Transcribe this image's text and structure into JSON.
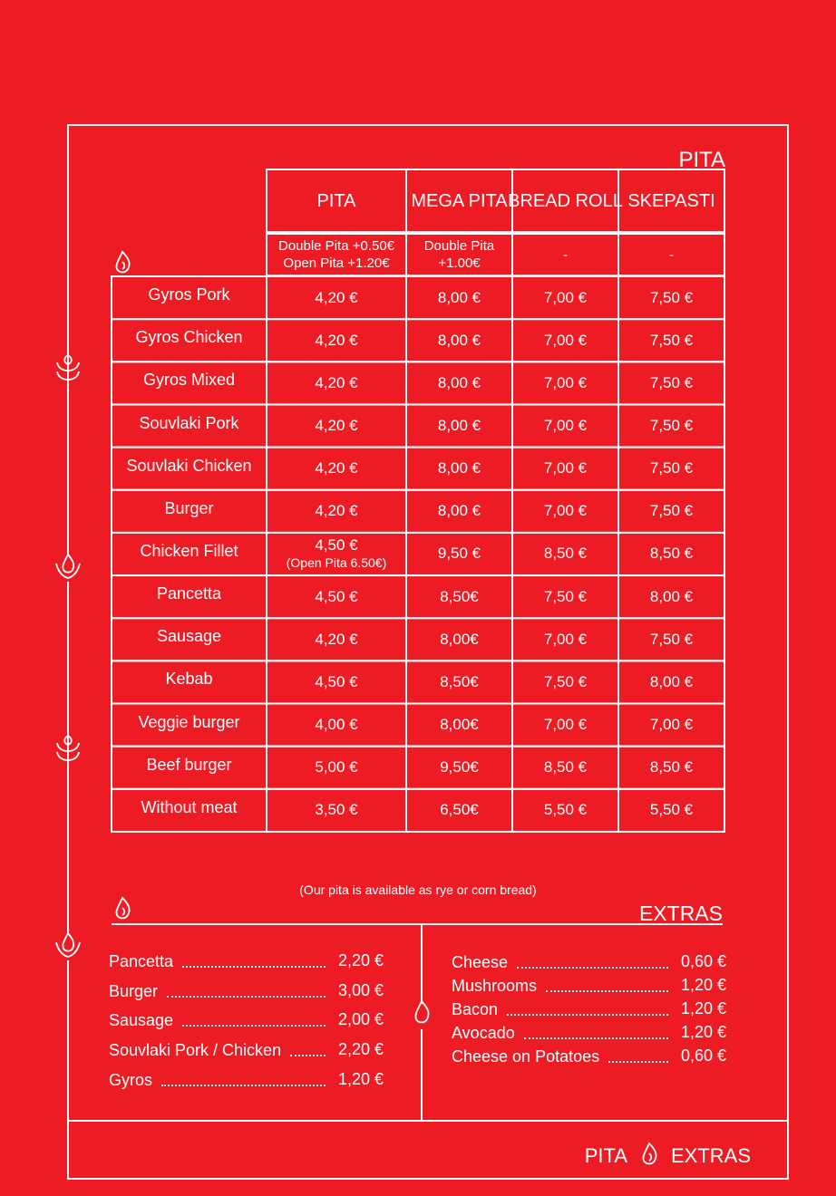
{
  "section_title": "PITA",
  "columns": [
    "PITA",
    "MEGA PITA",
    "BREAD ROLL",
    "SKEPASTI"
  ],
  "notes": [
    [
      "Double Pita +0.50€",
      "Open Pita +1.20€"
    ],
    [
      "Double Pita",
      "+1.00€"
    ],
    [
      "-"
    ],
    [
      "-"
    ]
  ],
  "rows": [
    {
      "name": "Gyros Pork",
      "prices": [
        "4,20 €",
        "8,00 €",
        "7,00 €",
        "7,50 €"
      ]
    },
    {
      "name": "Gyros Chicken",
      "prices": [
        "4,20 €",
        "8,00 €",
        "7,00 €",
        "7,50 €"
      ]
    },
    {
      "name": "Gyros Mixed",
      "prices": [
        "4,20 €",
        "8,00 €",
        "7,00 €",
        "7,50 €"
      ]
    },
    {
      "name": "Souvlaki Pork",
      "prices": [
        "4,20 €",
        "8,00 €",
        "7,00 €",
        "7,50 €"
      ]
    },
    {
      "name": "Souvlaki Chicken",
      "prices": [
        "4,20 €",
        "8,00 €",
        "7,00 €",
        "7,50 €"
      ]
    },
    {
      "name": "Burger",
      "prices": [
        "4,20 €",
        "8,00 €",
        "7,00 €",
        "7,50 €"
      ]
    },
    {
      "name": "Chicken Fillet",
      "prices": [
        "4,50 €",
        "9,50 €",
        "8,50 €",
        "8,50 €"
      ],
      "extra": "(Open Pita 6.50€)"
    },
    {
      "name": "Pancetta",
      "prices": [
        "4,50 €",
        "8,50€",
        "7,50 €",
        "8,00 €"
      ]
    },
    {
      "name": "Sausage",
      "prices": [
        "4,20 €",
        "8,00€",
        "7,00 €",
        "7,50 €"
      ]
    },
    {
      "name": "Kebab",
      "prices": [
        "4,50 €",
        "8,50€",
        "7,50 €",
        "8,00 €"
      ]
    },
    {
      "name": "Veggie burger",
      "prices": [
        "4,00 €",
        "8,00€",
        "7,00 €",
        "7,00 €"
      ]
    },
    {
      "name": "Beef burger",
      "prices": [
        "5,00 €",
        "9,50€",
        "8,50 €",
        "8,50 €"
      ]
    },
    {
      "name": "Without meat",
      "prices": [
        "3,50 €",
        "6,50€",
        "5,50 €",
        "5,50 €"
      ]
    }
  ],
  "footnote": "(Our pita is available as rye or corn bread)",
  "extras_title": "EXTRAS",
  "extras_left": [
    {
      "name": "Pancetta",
      "price": "2,20 €"
    },
    {
      "name": "Burger",
      "price": "3,00 €"
    },
    {
      "name": "Sausage",
      "price": "2,00 €"
    },
    {
      "name": "Souvlaki Pork / Chicken",
      "price": "2,20 €"
    },
    {
      "name": "Gyros",
      "price": "1,20 €"
    }
  ],
  "extras_right": [
    {
      "name": "Cheese",
      "price": "0,60 €"
    },
    {
      "name": "Mushrooms",
      "price": "1,20 €"
    },
    {
      "name": "Bacon",
      "price": "1,20 €"
    },
    {
      "name": "Avocado",
      "price": "1,20 €"
    },
    {
      "name": "Cheese on Potatoes",
      "price": "0,60 €"
    }
  ],
  "footer": {
    "left": "PITA",
    "right": "EXTRAS"
  }
}
